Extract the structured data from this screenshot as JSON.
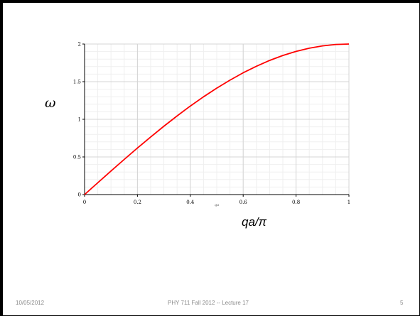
{
  "slide": {
    "accent_color": "#000000",
    "footer": {
      "date": "10/05/2012",
      "title": "PHY 711  Fall 2012 -- Lecture 17",
      "page": "5"
    }
  },
  "chart_data": {
    "type": "line",
    "title": "",
    "ylabel_large": "ω",
    "xlabel_large": "qa/π",
    "xlabel_small": "qa",
    "xlim": [
      0,
      1
    ],
    "ylim": [
      0,
      2
    ],
    "xticks": [
      "0",
      "0.2",
      "0.4",
      "0.6",
      "0.8",
      "1"
    ],
    "yticks": [
      "0",
      "0.5",
      "1",
      "1.5",
      "2"
    ],
    "grid": true,
    "line_color": "#ff0000",
    "series": [
      {
        "x": [
          0,
          0.05,
          0.1,
          0.15,
          0.2,
          0.25,
          0.3,
          0.35,
          0.4,
          0.45,
          0.5,
          0.55,
          0.6,
          0.65,
          0.7,
          0.75,
          0.8,
          0.85,
          0.9,
          0.95,
          1.0
        ],
        "values": [
          0,
          0.157,
          0.313,
          0.467,
          0.618,
          0.765,
          0.908,
          1.045,
          1.176,
          1.299,
          1.414,
          1.52,
          1.618,
          1.705,
          1.782,
          1.848,
          1.902,
          1.945,
          1.975,
          1.994,
          2.0
        ]
      }
    ]
  }
}
